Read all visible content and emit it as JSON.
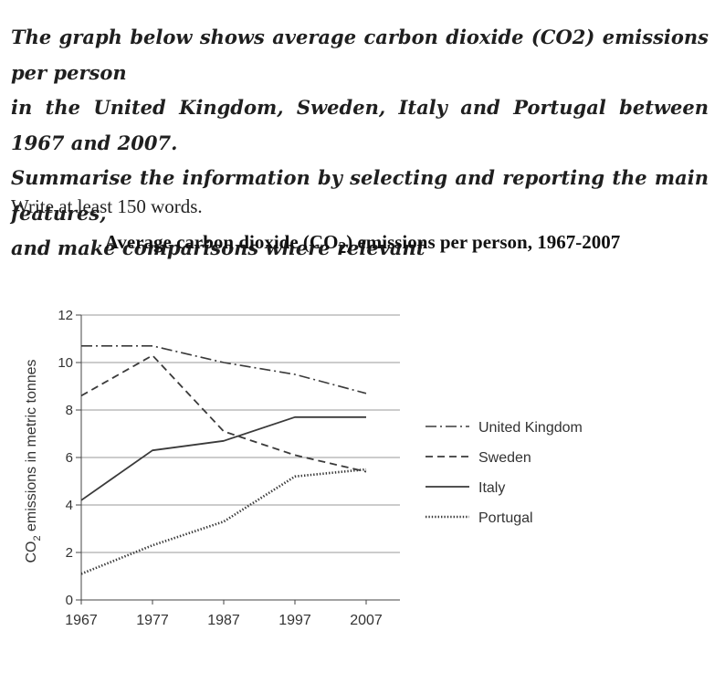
{
  "task": {
    "prompt_lines": [
      "The graph below shows average carbon dioxide (CO2) emissions per person",
      "in the United Kingdom, Sweden, Italy and Portugal between 1967 and 2007.",
      "Summarise the information by selecting and reporting the main features,",
      "and make comparisons where relevant"
    ],
    "instruction": "Write at least 150 words."
  },
  "chart_data": {
    "type": "line",
    "title": "Average carbon dioxide (CO2) emissions per person, 1967-2007",
    "title_parts": {
      "before": "Average carbon dioxide (CO",
      "sub": "2",
      "after": ") emissions per person, 1967-2007"
    },
    "ylabel": "CO2 emissions in metric tonnes",
    "ylabel_parts": {
      "before": "CO",
      "sub": "2",
      "after": " emissions in metric tonnes"
    },
    "xlabel": "",
    "x": [
      1967,
      1977,
      1987,
      1997,
      2007
    ],
    "ylim": [
      0,
      12
    ],
    "yticks": [
      0,
      2,
      4,
      6,
      8,
      10,
      12
    ],
    "grid": true,
    "legend_position": "right",
    "series": [
      {
        "name": "United Kingdom",
        "style": "dashdot",
        "values": [
          10.7,
          10.7,
          10.0,
          9.5,
          8.7
        ]
      },
      {
        "name": "Sweden",
        "style": "dashed",
        "values": [
          8.6,
          10.3,
          7.1,
          6.1,
          5.4
        ]
      },
      {
        "name": "Italy",
        "style": "solid",
        "values": [
          4.2,
          6.3,
          6.7,
          7.7,
          7.7
        ]
      },
      {
        "name": "Portugal",
        "style": "dotted",
        "values": [
          1.1,
          2.3,
          3.3,
          5.2,
          5.5
        ]
      }
    ],
    "colors": {
      "lines": "#3a3a3a",
      "grid": "#9a9a9a"
    }
  }
}
